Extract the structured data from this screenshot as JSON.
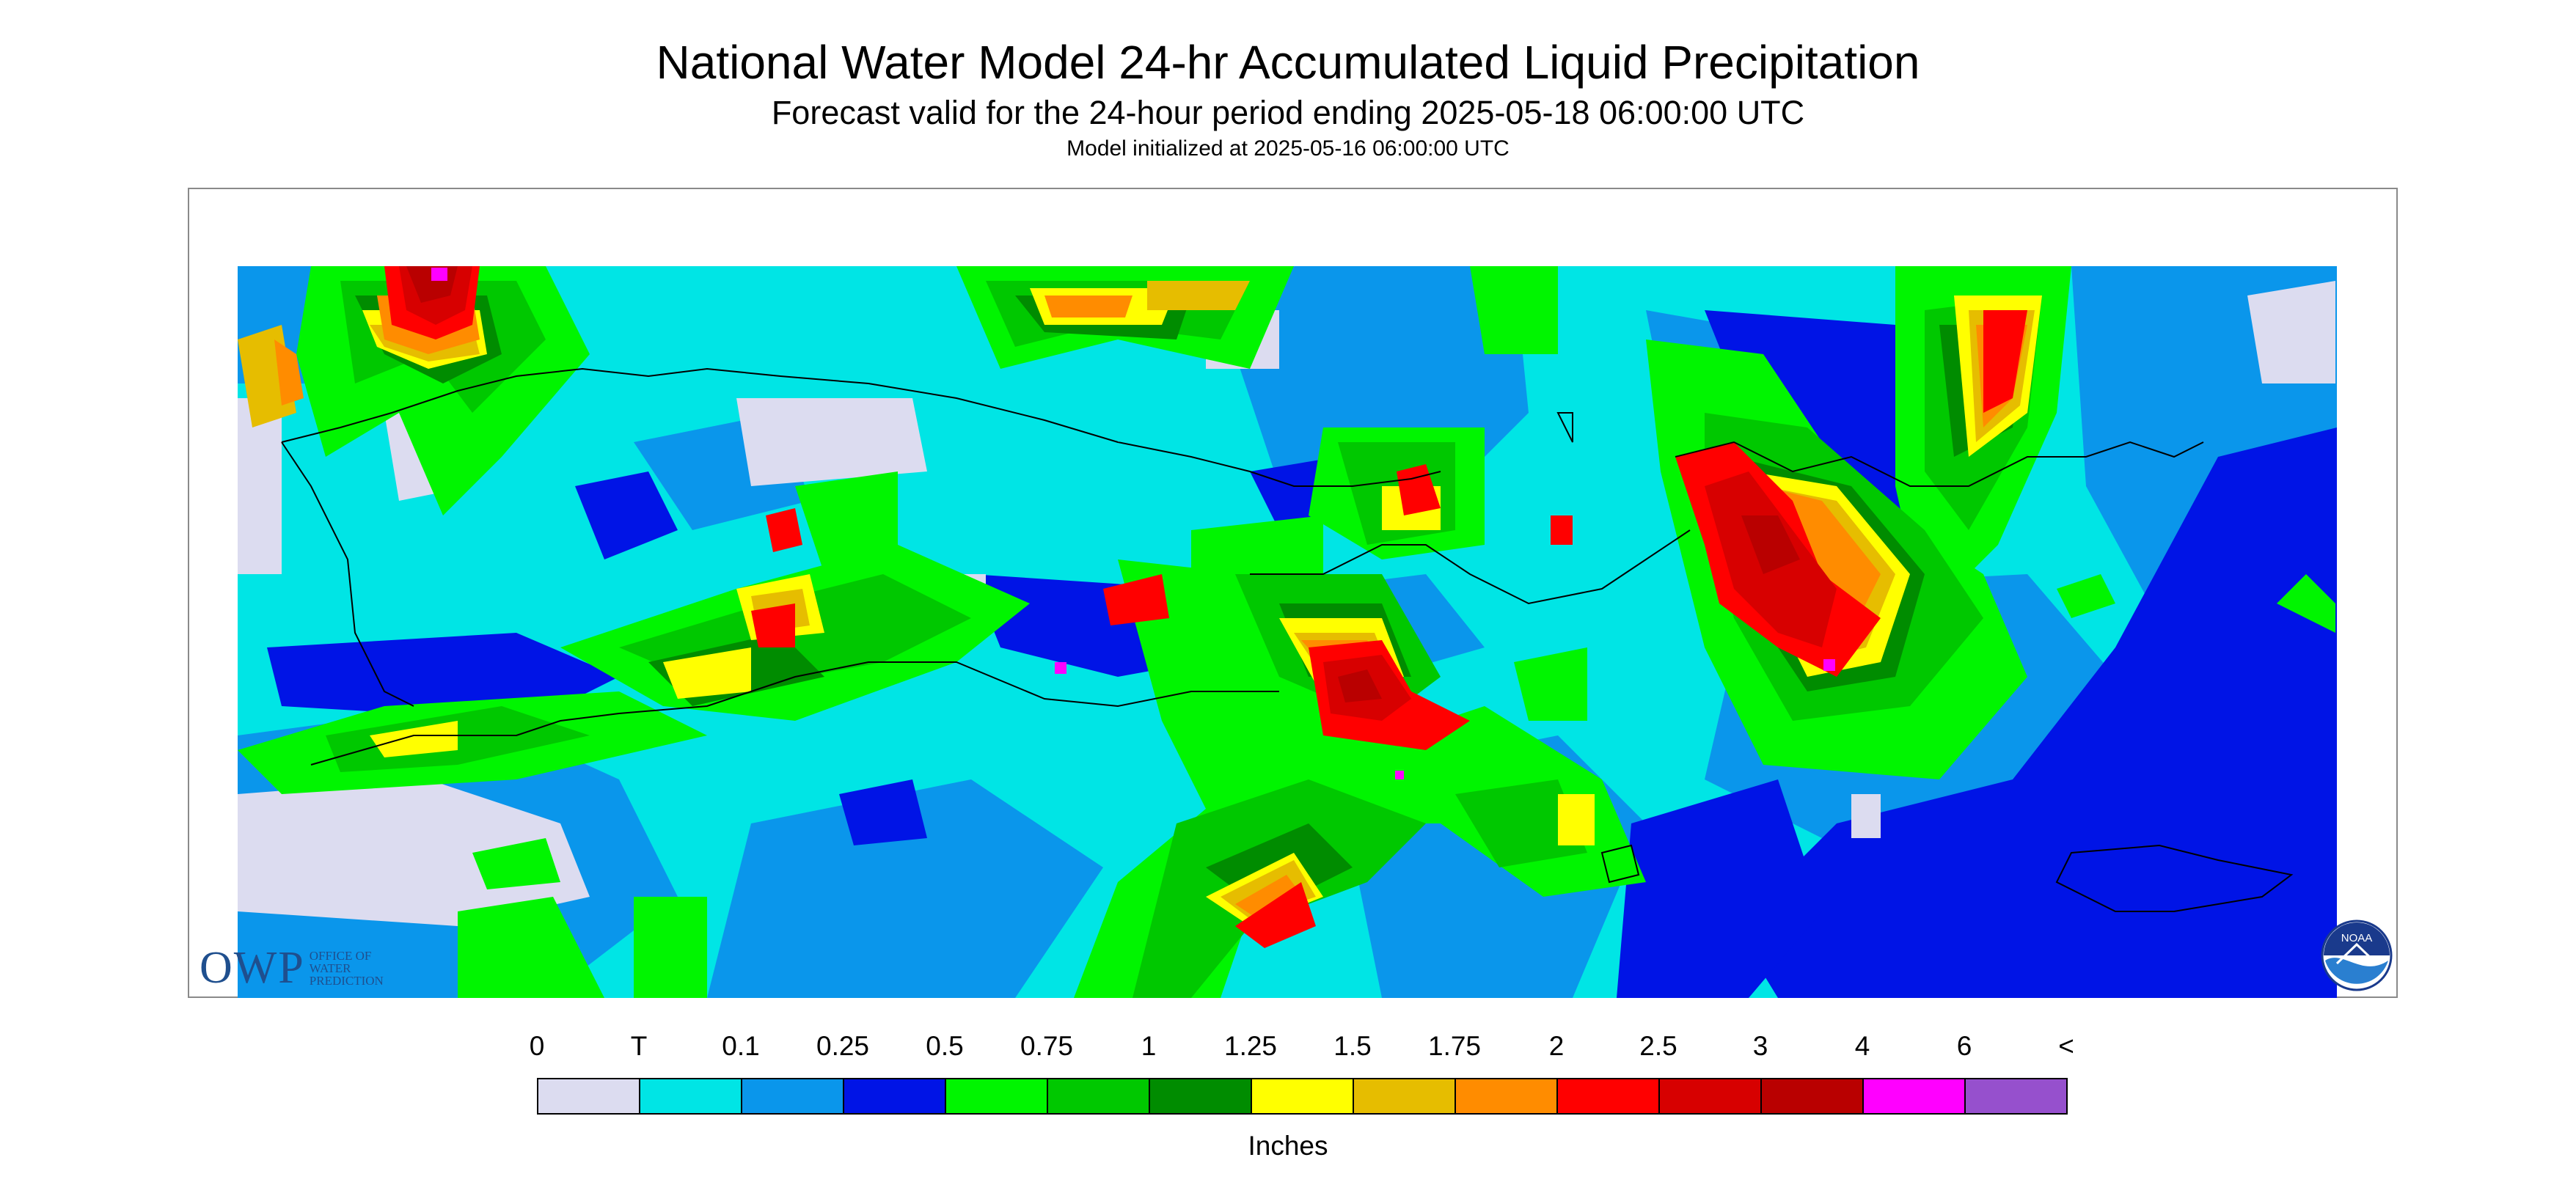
{
  "header": {
    "title": "National Water Model 24-hr Accumulated Liquid Precipitation",
    "subtitle": "Forecast valid for the 24-hour period ending 2025-05-18 06:00:00 UTC",
    "init": "Model initialized at 2025-05-16 06:00:00 UTC"
  },
  "logos": {
    "owp": "OWP",
    "owp_sub": "OFFICE OF\nWATER\nPREDICTION",
    "noaa": "NOAA"
  },
  "legend": {
    "ticks": [
      "0",
      "T",
      "0.1",
      "0.25",
      "0.5",
      "0.75",
      "1",
      "1.25",
      "1.5",
      "1.75",
      "2",
      "2.5",
      "3",
      "4",
      "6",
      "<"
    ],
    "colors": [
      "#dcdcf0",
      "#00e5e5",
      "#0a96eb",
      "#0014e6",
      "#00f500",
      "#00c800",
      "#008c00",
      "#ffff00",
      "#e6bd00",
      "#ff8c00",
      "#ff0000",
      "#d70000",
      "#b90000",
      "#ff00ff",
      "#9650cd"
    ],
    "units": "Inches"
  },
  "map": {
    "background_color": "#00e5e5",
    "regions": [
      {
        "level": "0.1",
        "color": "#0a96eb"
      },
      {
        "level": "0.25",
        "color": "#0014e6"
      },
      {
        "level": "0",
        "color": "#dcdcf0"
      },
      {
        "level": "0.5",
        "color": "#00f500"
      },
      {
        "level": "0.75",
        "color": "#00c800"
      },
      {
        "level": "1",
        "color": "#008c00"
      },
      {
        "level": "1.25",
        "color": "#ffff00"
      },
      {
        "level": "1.5",
        "color": "#e6bd00"
      },
      {
        "level": "1.75",
        "color": "#ff8c00"
      },
      {
        "level": "2",
        "color": "#ff0000"
      },
      {
        "level": "2.5",
        "color": "#d70000"
      },
      {
        "level": "3",
        "color": "#b90000"
      },
      {
        "level": "4",
        "color": "#ff00ff"
      }
    ]
  }
}
